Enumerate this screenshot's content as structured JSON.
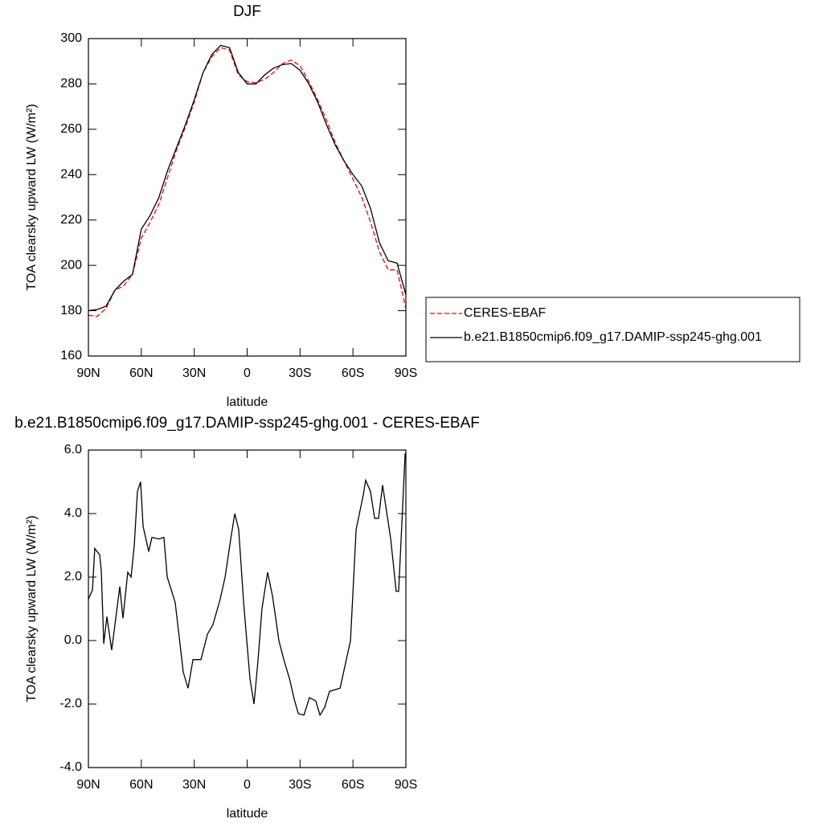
{
  "chart_data": [
    {
      "type": "line",
      "title": "DJF",
      "xlabel": "latitude",
      "ylabel": "TOA clearsky upward LW (W/m²)",
      "xlim": [
        90,
        -90
      ],
      "xticks": [
        {
          "value": 90,
          "label": "90N"
        },
        {
          "value": 60,
          "label": "60N"
        },
        {
          "value": 30,
          "label": "30N"
        },
        0,
        {
          "value": -30,
          "label": "30S"
        },
        {
          "value": -60,
          "label": "60S"
        },
        {
          "value": -90,
          "label": "90S"
        }
      ],
      "ylim": [
        160,
        300
      ],
      "yticks": [
        160,
        180,
        200,
        220,
        240,
        260,
        280,
        300
      ],
      "legend": "right",
      "x": [
        90,
        85,
        80,
        75,
        70,
        65,
        60,
        55,
        50,
        45,
        40,
        35,
        30,
        25,
        20,
        15,
        10,
        5,
        0,
        -5,
        -10,
        -15,
        -20,
        -25,
        -30,
        -35,
        -40,
        -45,
        -50,
        -55,
        -60,
        -65,
        -70,
        -75,
        -80,
        -85,
        -90
      ],
      "series": [
        {
          "name": "CERES-EBAF",
          "color": "#ff0000",
          "dash": "dashed",
          "values": [
            178,
            177.5,
            181,
            189,
            191,
            196,
            212,
            219,
            227,
            239,
            251,
            261,
            272,
            285,
            292,
            296,
            295,
            284,
            281,
            280.5,
            282,
            285,
            289,
            290.5,
            288,
            281,
            273,
            264,
            254,
            246,
            238,
            230,
            219,
            206,
            198,
            198,
            181
          ]
        },
        {
          "name": "b.e21.B1850cmip6.f09_g17.DAMIP-ssp245-ghg.001",
          "color": "#000000",
          "dash": "solid",
          "values": [
            180,
            180.5,
            182,
            189,
            193,
            196,
            216,
            222,
            230,
            242,
            252,
            262,
            273,
            285,
            293,
            297,
            296,
            285,
            280,
            280,
            284,
            287,
            288.5,
            289,
            286,
            280,
            272,
            262,
            253,
            246,
            240,
            235,
            225,
            210,
            202,
            201,
            187
          ]
        }
      ]
    },
    {
      "type": "line",
      "title": "b.e21.B1850cmip6.f09_g17.DAMIP-ssp245-ghg.001 - CERES-EBAF",
      "xlabel": "latitude",
      "ylabel": "TOA clearsky upward LW (W/m²)",
      "xlim": [
        90,
        -90
      ],
      "xticks": [
        {
          "value": 90,
          "label": "90N"
        },
        {
          "value": 60,
          "label": "60N"
        },
        {
          "value": 30,
          "label": "30N"
        },
        0,
        {
          "value": -30,
          "label": "30S"
        },
        {
          "value": -60,
          "label": "60S"
        },
        {
          "value": -90,
          "label": "90S"
        }
      ],
      "ylim": [
        -4,
        6
      ],
      "yticks": [
        {
          "value": -4,
          "label": "-4.0"
        },
        {
          "value": -2,
          "label": "-2.0"
        },
        {
          "value": 0,
          "label": "0.0"
        },
        {
          "value": 2,
          "label": "2.0"
        },
        {
          "value": 4,
          "label": "4.0"
        },
        {
          "value": 6,
          "label": "6.0"
        }
      ],
      "x": [
        90,
        87.7,
        86.4,
        83.6,
        82.7,
        81.3,
        79.5,
        76.8,
        74.5,
        72.2,
        70.4,
        67.7,
        65.8,
        64,
        62.2,
        60.4,
        59,
        55.8,
        54,
        49.9,
        47.2,
        45.3,
        40.8,
        36.2,
        33.5,
        30.7,
        26.2,
        22.5,
        19.4,
        15.3,
        12.5,
        9.3,
        7,
        4.8,
        2,
        -1.6,
        -3.9,
        -6.2,
        -8.4,
        -11.6,
        -14.4,
        -18,
        -20.8,
        -24,
        -26.7,
        -29,
        -32.2,
        -35.3,
        -38.9,
        -41.3,
        -44,
        -46.7,
        -52.7,
        -58.6,
        -61.8,
        -65.9,
        -67.2,
        -69.9,
        -72.3,
        -74.5,
        -76.8,
        -81.4,
        -84.5,
        -85.9,
        -89.6
      ],
      "series": [
        {
          "color": "#000000",
          "dash": "solid",
          "values": [
            1.3,
            1.6,
            2.9,
            2.7,
            2.2,
            -0.1,
            0.75,
            -0.3,
            0.7,
            1.7,
            0.7,
            2.15,
            2.0,
            3.0,
            4.7,
            5.0,
            3.6,
            2.8,
            3.25,
            3.2,
            3.25,
            2.0,
            1.2,
            -1.0,
            -1.5,
            -0.6,
            -0.6,
            0.2,
            0.5,
            1.3,
            2.0,
            3.2,
            4.0,
            3.5,
            1.2,
            -1.2,
            -2.0,
            -0.6,
            1.0,
            2.15,
            1.4,
            0,
            -0.6,
            -1.2,
            -1.85,
            -2.3,
            -2.35,
            -1.8,
            -1.9,
            -2.35,
            -2.1,
            -1.6,
            -1.5,
            0,
            3.5,
            4.6,
            5.05,
            4.7,
            3.85,
            3.85,
            4.9,
            3.2,
            1.55,
            1.55,
            5.9
          ]
        }
      ]
    }
  ]
}
